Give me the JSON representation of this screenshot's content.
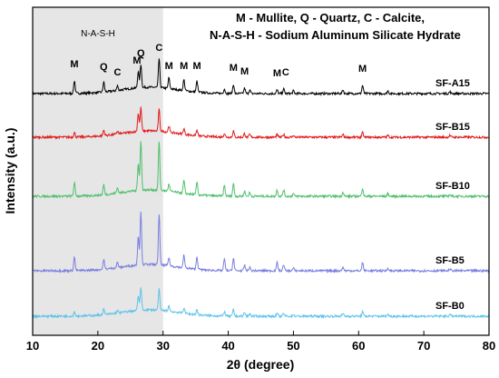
{
  "chart_data": {
    "type": "line",
    "xlabel": "2θ (degree)",
    "ylabel": "Intensity (a.u.)",
    "xlim": [
      10,
      80
    ],
    "xticks": [
      10,
      20,
      30,
      40,
      50,
      60,
      70,
      80
    ],
    "legend_lines": [
      "M - Mullite, Q - Quartz, C - Calcite,",
      "N-A-S-H - Sodium Aluminum Silicate Hydrate"
    ],
    "shaded_region": {
      "label": "N-A-S-H",
      "x_range": [
        10,
        30
      ],
      "color": "#e6e6e6"
    },
    "peaks": [
      16.4,
      20.9,
      23.0,
      26.2,
      26.6,
      29.4,
      30.9,
      33.2,
      35.2,
      39.4,
      40.8,
      42.5,
      43.3,
      47.5,
      48.5,
      50.0,
      57.6,
      60.6,
      64.5,
      74.0
    ],
    "peak_annotations": [
      {
        "label": "M",
        "x": 16.4
      },
      {
        "label": "Q",
        "x": 20.9
      },
      {
        "label": "C",
        "x": 23.0
      },
      {
        "label": "M",
        "x": 26.0
      },
      {
        "label": "Q",
        "x": 26.6
      },
      {
        "label": "C",
        "x": 29.4
      },
      {
        "label": "M",
        "x": 30.9
      },
      {
        "label": "M",
        "x": 33.2
      },
      {
        "label": "M",
        "x": 35.2
      },
      {
        "label": "M",
        "x": 40.8
      },
      {
        "label": "M",
        "x": 42.5
      },
      {
        "label": "M",
        "x": 47.5
      },
      {
        "label": "C",
        "x": 48.8
      },
      {
        "label": "M",
        "x": 60.6
      }
    ],
    "series": [
      {
        "name": "SF-A15",
        "color": "#000000",
        "peak_heights": [
          14,
          11,
          5,
          18,
          26,
          32,
          12,
          12,
          12,
          5,
          10,
          6,
          4,
          4,
          5,
          3,
          4,
          9,
          3,
          2
        ]
      },
      {
        "name": "SF-B15",
        "color": "#e01b1b",
        "peak_heights": [
          5,
          6,
          3,
          20,
          26,
          24,
          7,
          6,
          6,
          4,
          7,
          4,
          3,
          3,
          3,
          2,
          3,
          5,
          2,
          2
        ]
      },
      {
        "name": "SF-B10",
        "color": "#4fc06a",
        "peak_heights": [
          15,
          11,
          6,
          30,
          54,
          53,
          8,
          14,
          14,
          12,
          14,
          6,
          4,
          7,
          7,
          3,
          5,
          9,
          3,
          2
        ]
      },
      {
        "name": "SF-B5",
        "color": "#7a7fe0",
        "peak_heights": [
          15,
          11,
          6,
          32,
          58,
          56,
          9,
          14,
          14,
          13,
          14,
          6,
          4,
          9,
          7,
          3,
          4,
          9,
          3,
          2
        ]
      },
      {
        "name": "SF-B0",
        "color": "#5ec3ea",
        "peak_heights": [
          5,
          6,
          3,
          16,
          25,
          23,
          6,
          6,
          6,
          5,
          7,
          4,
          3,
          3,
          3,
          2,
          3,
          5,
          2,
          2
        ]
      }
    ]
  }
}
